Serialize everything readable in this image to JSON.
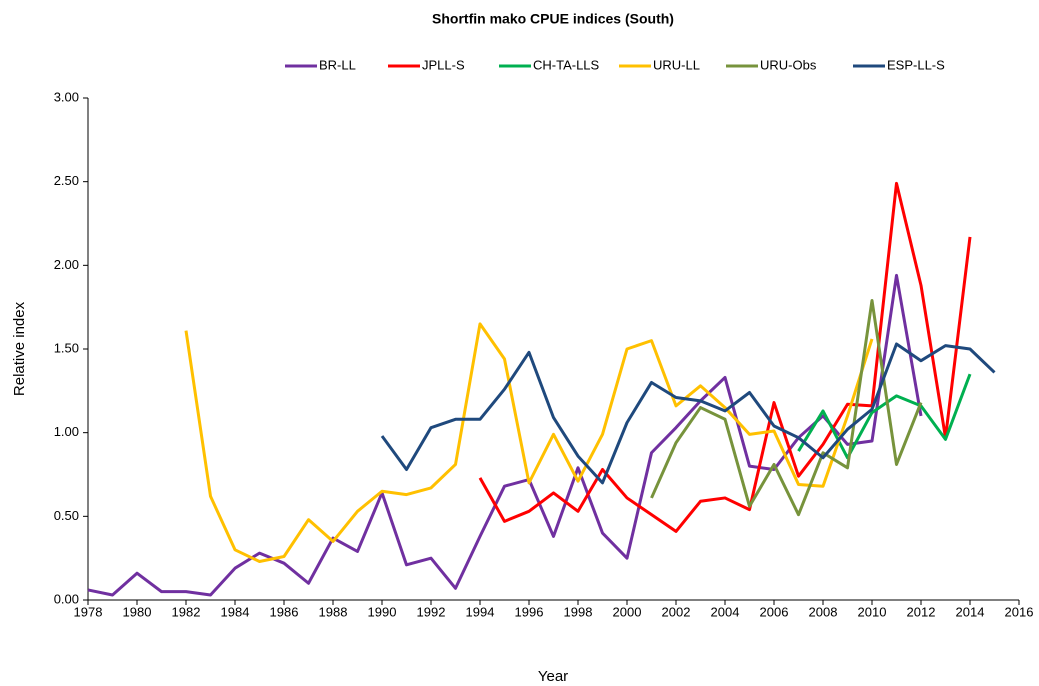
{
  "chart_data": {
    "type": "line",
    "title": "Shortfin mako CPUE indices (South)",
    "x_label": "Year",
    "y_label": "Relative index",
    "x": [
      1978,
      1979,
      1980,
      1981,
      1982,
      1983,
      1984,
      1985,
      1986,
      1987,
      1988,
      1989,
      1990,
      1991,
      1992,
      1993,
      1994,
      1995,
      1996,
      1997,
      1998,
      1999,
      2000,
      2001,
      2002,
      2003,
      2004,
      2005,
      2006,
      2007,
      2008,
      2009,
      2010,
      2011,
      2012,
      2013,
      2014,
      2015
    ],
    "xlim": [
      1978,
      2016
    ],
    "xticks": [
      1978,
      1980,
      1982,
      1984,
      1986,
      1988,
      1990,
      1992,
      1994,
      1996,
      1998,
      2000,
      2002,
      2004,
      2006,
      2008,
      2010,
      2012,
      2014,
      2016
    ],
    "ylim": [
      0,
      3
    ],
    "yticks": [
      {
        "value": 0,
        "label": "0.00"
      },
      {
        "value": 0.5,
        "label": "0.50"
      },
      {
        "value": 1,
        "label": "1.00"
      },
      {
        "value": 1.5,
        "label": "1.50"
      },
      {
        "value": 2,
        "label": "2.00"
      },
      {
        "value": 2.5,
        "label": "2.50"
      },
      {
        "value": 3,
        "label": "3.00"
      }
    ],
    "series": [
      {
        "name": "BR-LL",
        "color": "#7030a0",
        "values": [
          0.06,
          0.03,
          0.16,
          0.05,
          0.05,
          0.03,
          0.19,
          0.28,
          0.22,
          0.1,
          0.37,
          0.29,
          0.64,
          0.21,
          0.25,
          0.07,
          0.38,
          0.68,
          0.72,
          0.38,
          0.79,
          0.4,
          0.25,
          0.88,
          1.03,
          1.19,
          1.33,
          0.8,
          0.78,
          0.97,
          1.1,
          0.93,
          0.95,
          1.94,
          1.1,
          null,
          null,
          null
        ]
      },
      {
        "name": "JPLL-S",
        "color": "#ff0000",
        "values": [
          null,
          null,
          null,
          null,
          null,
          null,
          null,
          null,
          null,
          null,
          null,
          null,
          null,
          null,
          null,
          null,
          0.73,
          0.47,
          0.53,
          0.64,
          0.53,
          0.78,
          0.61,
          0.51,
          0.41,
          0.59,
          0.61,
          0.54,
          1.18,
          0.74,
          0.93,
          1.17,
          1.16,
          2.49,
          1.88,
          0.97,
          2.17,
          null
        ]
      },
      {
        "name": "CH-TA-LLS",
        "color": "#00b050",
        "values": [
          null,
          null,
          null,
          null,
          null,
          null,
          null,
          null,
          null,
          null,
          null,
          null,
          null,
          null,
          null,
          null,
          null,
          null,
          null,
          null,
          null,
          null,
          null,
          null,
          null,
          null,
          null,
          null,
          null,
          0.89,
          1.13,
          0.85,
          1.12,
          1.22,
          1.16,
          0.96,
          1.35,
          null
        ]
      },
      {
        "name": "URU-LL",
        "color": "#ffc000",
        "values": [
          null,
          null,
          null,
          null,
          1.61,
          0.62,
          0.3,
          0.23,
          0.26,
          0.48,
          0.35,
          0.53,
          0.65,
          0.63,
          0.67,
          0.81,
          1.65,
          1.44,
          0.7,
          0.99,
          0.71,
          0.99,
          1.5,
          1.55,
          1.16,
          1.28,
          1.15,
          0.99,
          1.01,
          0.69,
          0.68,
          1.1,
          1.56,
          null,
          null,
          null,
          null,
          null
        ]
      },
      {
        "name": "URU-Obs",
        "color": "#77933c",
        "values": [
          null,
          null,
          null,
          null,
          null,
          null,
          null,
          null,
          null,
          null,
          null,
          null,
          null,
          null,
          null,
          null,
          null,
          null,
          null,
          null,
          null,
          null,
          null,
          0.61,
          0.94,
          1.15,
          1.08,
          0.56,
          0.81,
          0.51,
          0.88,
          0.79,
          1.79,
          0.81,
          1.18,
          null,
          null,
          null
        ]
      },
      {
        "name": "ESP-LL-S",
        "color": "#1f497d",
        "values": [
          null,
          null,
          null,
          null,
          null,
          null,
          null,
          null,
          null,
          null,
          null,
          null,
          0.98,
          0.78,
          1.03,
          1.08,
          1.08,
          1.26,
          1.48,
          1.09,
          0.86,
          0.7,
          1.06,
          1.3,
          1.21,
          1.19,
          1.13,
          1.24,
          1.04,
          0.97,
          0.85,
          1.02,
          1.14,
          1.53,
          1.43,
          1.52,
          1.5,
          1.36
        ]
      }
    ]
  }
}
